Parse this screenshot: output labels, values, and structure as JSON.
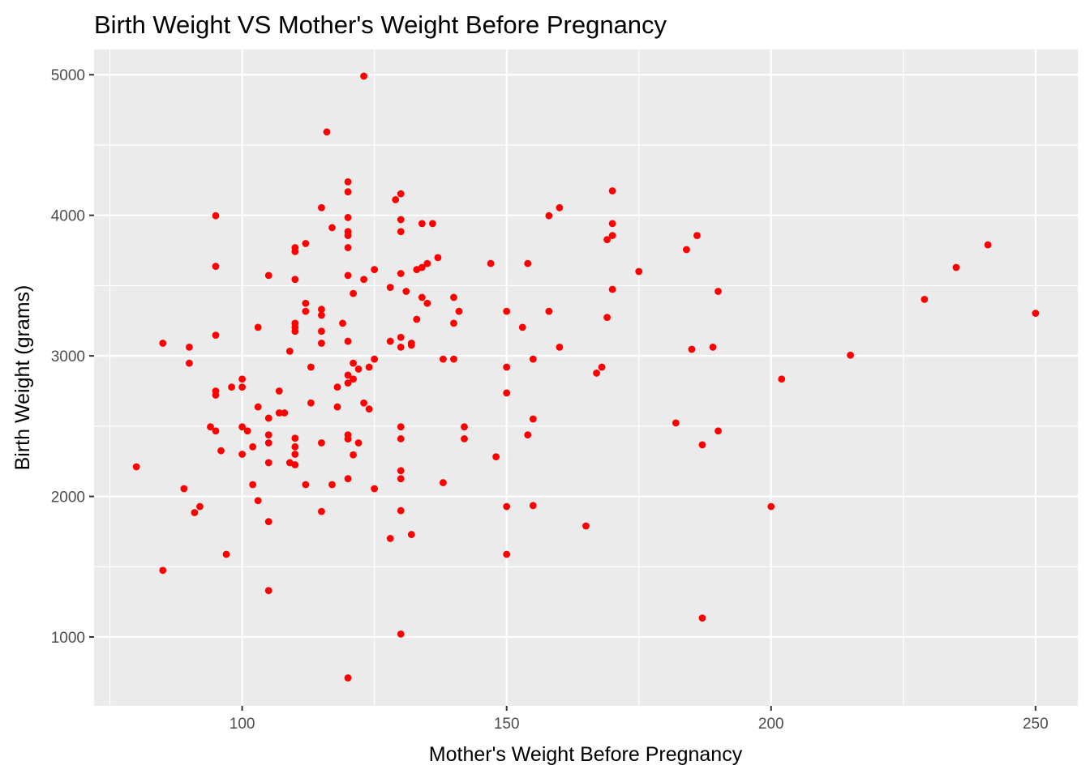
{
  "chart_data": {
    "type": "scatter",
    "title": "Birth Weight VS Mother's Weight Before Pregnancy",
    "xlabel": "Mother's Weight Before Pregnancy",
    "ylabel": "Birth Weight (grams)",
    "xlim": [
      72,
      258
    ],
    "ylim": [
      510,
      5180
    ],
    "x_ticks": [
      100,
      150,
      200,
      250
    ],
    "y_ticks": [
      1000,
      2000,
      3000,
      4000,
      5000
    ],
    "x_tick_labels": [
      "100",
      "150",
      "200",
      "250"
    ],
    "y_tick_labels": [
      "1000",
      "2000",
      "3000",
      "4000",
      "5000"
    ],
    "grid": true,
    "legend": "none",
    "colors": {
      "point": "#ff0000",
      "panel": "#ebebeb",
      "grid": "#ffffff"
    },
    "points": [
      [
        123,
        4990
      ],
      [
        116,
        4593
      ],
      [
        120,
        4238
      ],
      [
        120,
        4167
      ],
      [
        130,
        4153
      ],
      [
        129,
        4111
      ],
      [
        170,
        4174
      ],
      [
        160,
        4054
      ],
      [
        115,
        4054
      ],
      [
        158,
        3997
      ],
      [
        95,
        3997
      ],
      [
        130,
        3969
      ],
      [
        120,
        3984
      ],
      [
        134,
        3941
      ],
      [
        136,
        3941
      ],
      [
        170,
        3941
      ],
      [
        117,
        3912
      ],
      [
        120,
        3884
      ],
      [
        120,
        3856
      ],
      [
        130,
        3884
      ],
      [
        186,
        3856
      ],
      [
        170,
        3856
      ],
      [
        169,
        3827
      ],
      [
        241,
        3790
      ],
      [
        112,
        3799
      ],
      [
        110,
        3770
      ],
      [
        120,
        3770
      ],
      [
        110,
        3742
      ],
      [
        184,
        3756
      ],
      [
        137,
        3699
      ],
      [
        135,
        3657
      ],
      [
        147,
        3657
      ],
      [
        154,
        3657
      ],
      [
        133,
        3614
      ],
      [
        134,
        3629
      ],
      [
        95,
        3637
      ],
      [
        235,
        3629
      ],
      [
        125,
        3614
      ],
      [
        175,
        3600
      ],
      [
        130,
        3586
      ],
      [
        105,
        3572
      ],
      [
        120,
        3572
      ],
      [
        123,
        3544
      ],
      [
        110,
        3544
      ],
      [
        128,
        3487
      ],
      [
        131,
        3459
      ],
      [
        170,
        3473
      ],
      [
        190,
        3459
      ],
      [
        121,
        3444
      ],
      [
        134,
        3416
      ],
      [
        140,
        3416
      ],
      [
        229,
        3402
      ],
      [
        135,
        3374
      ],
      [
        112,
        3374
      ],
      [
        115,
        3331
      ],
      [
        141,
        3317
      ],
      [
        150,
        3317
      ],
      [
        158,
        3317
      ],
      [
        250,
        3303
      ],
      [
        112,
        3317
      ],
      [
        115,
        3289
      ],
      [
        169,
        3274
      ],
      [
        133,
        3260
      ],
      [
        140,
        3232
      ],
      [
        110,
        3232
      ],
      [
        119,
        3232
      ],
      [
        110,
        3203
      ],
      [
        103,
        3203
      ],
      [
        153,
        3203
      ],
      [
        110,
        3175
      ],
      [
        115,
        3175
      ],
      [
        95,
        3147
      ],
      [
        130,
        3132
      ],
      [
        120,
        3104
      ],
      [
        128,
        3104
      ],
      [
        132,
        3090
      ],
      [
        85,
        3090
      ],
      [
        115,
        3090
      ],
      [
        130,
        3062
      ],
      [
        132,
        3076
      ],
      [
        160,
        3062
      ],
      [
        189,
        3062
      ],
      [
        90,
        3062
      ],
      [
        185,
        3047
      ],
      [
        109,
        3033
      ],
      [
        215,
        3005
      ],
      [
        140,
        2977
      ],
      [
        138,
        2977
      ],
      [
        125,
        2977
      ],
      [
        155,
        2977
      ],
      [
        90,
        2948
      ],
      [
        121,
        2948
      ],
      [
        150,
        2920
      ],
      [
        168,
        2920
      ],
      [
        113,
        2920
      ],
      [
        124,
        2920
      ],
      [
        122,
        2906
      ],
      [
        167,
        2877
      ],
      [
        120,
        2863
      ],
      [
        121,
        2835
      ],
      [
        100,
        2835
      ],
      [
        202,
        2835
      ],
      [
        120,
        2807
      ],
      [
        98,
        2778
      ],
      [
        100,
        2778
      ],
      [
        118,
        2778
      ],
      [
        95,
        2750
      ],
      [
        107,
        2750
      ],
      [
        95,
        2721
      ],
      [
        150,
        2736
      ],
      [
        113,
        2665
      ],
      [
        124,
        2622
      ],
      [
        123,
        2665
      ],
      [
        118,
        2637
      ],
      [
        103,
        2637
      ],
      [
        107,
        2594
      ],
      [
        108,
        2594
      ],
      [
        105,
        2557
      ],
      [
        155,
        2551
      ],
      [
        182,
        2523
      ],
      [
        94,
        2495
      ],
      [
        100,
        2495
      ],
      [
        130,
        2495
      ],
      [
        142,
        2495
      ],
      [
        95,
        2466
      ],
      [
        101,
        2466
      ],
      [
        105,
        2438
      ],
      [
        190,
        2466
      ],
      [
        154,
        2438
      ],
      [
        120,
        2438
      ],
      [
        110,
        2414
      ],
      [
        120,
        2409
      ],
      [
        130,
        2410
      ],
      [
        142,
        2410
      ],
      [
        115,
        2381
      ],
      [
        105,
        2381
      ],
      [
        122,
        2381
      ],
      [
        187,
        2367
      ],
      [
        110,
        2353
      ],
      [
        102,
        2353
      ],
      [
        96,
        2325
      ],
      [
        100,
        2300
      ],
      [
        110,
        2300
      ],
      [
        121,
        2296
      ],
      [
        148,
        2282
      ],
      [
        109,
        2240
      ],
      [
        110,
        2225
      ],
      [
        105,
        2240
      ],
      [
        80,
        2211
      ],
      [
        130,
        2183
      ],
      [
        138,
        2098
      ],
      [
        120,
        2126
      ],
      [
        130,
        2126
      ],
      [
        102,
        2084
      ],
      [
        112,
        2084
      ],
      [
        117,
        2084
      ],
      [
        89,
        2055
      ],
      [
        125,
        2055
      ],
      [
        103,
        1970
      ],
      [
        92,
        1928
      ],
      [
        150,
        1928
      ],
      [
        155,
        1935
      ],
      [
        91,
        1885
      ],
      [
        115,
        1893
      ],
      [
        130,
        1899
      ],
      [
        200,
        1928
      ],
      [
        105,
        1821
      ],
      [
        165,
        1790
      ],
      [
        132,
        1729
      ],
      [
        128,
        1701
      ],
      [
        97,
        1588
      ],
      [
        150,
        1588
      ],
      [
        85,
        1474
      ],
      [
        105,
        1330
      ],
      [
        187,
        1135
      ],
      [
        130,
        1021
      ],
      [
        120,
        709
      ]
    ]
  }
}
